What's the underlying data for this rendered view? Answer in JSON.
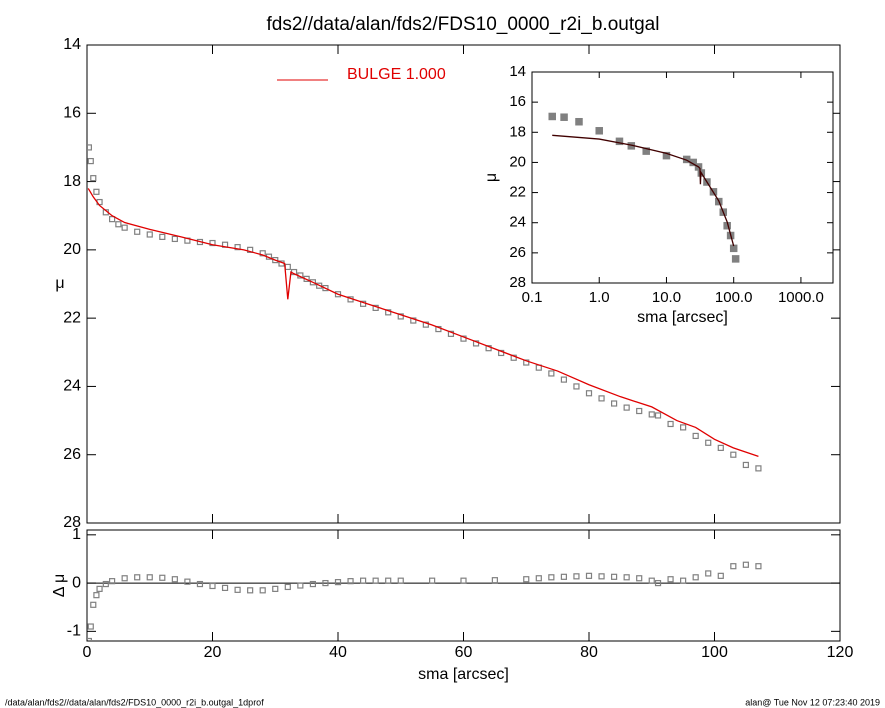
{
  "footer_left": "/data/alan/fds2//data/alan/fds2/FDS10_0000_r2i_b.outgal_1dprof",
  "footer_right": "alan@  Tue Nov 12 07:23:40 2019",
  "chart_data": [
    {
      "type": "line",
      "title": "fds2//data/alan/fds2/FDS10_0000_r2i_b.outgal",
      "y_label": "μ",
      "xlim": [
        0,
        120
      ],
      "xticks": [
        0,
        20,
        40,
        60,
        80,
        100,
        120
      ],
      "ylim": [
        14,
        28
      ],
      "y_inverted": true,
      "yticks": [
        14,
        16,
        18,
        20,
        22,
        24,
        26,
        28
      ],
      "series": [
        {
          "type": "square",
          "color": "#808080",
          "x": [
            0.3,
            0.6,
            1,
            1.5,
            2,
            3,
            4,
            5,
            6,
            8,
            10,
            12,
            14,
            16,
            18,
            20,
            22,
            24,
            26,
            28,
            29,
            30,
            31,
            32,
            33,
            34,
            35,
            36,
            37,
            38,
            40,
            42,
            44,
            46,
            48,
            50,
            52,
            54,
            56,
            58,
            60,
            62,
            64,
            66,
            68,
            70,
            72,
            74,
            76,
            78,
            80,
            82,
            84,
            86,
            88,
            90,
            91,
            93,
            95,
            97,
            99,
            101,
            103,
            105,
            107
          ],
          "values": [
            17.0,
            17.4,
            17.9,
            18.3,
            18.6,
            18.9,
            19.1,
            19.25,
            19.35,
            19.47,
            19.55,
            19.62,
            19.68,
            19.73,
            19.77,
            19.8,
            19.85,
            19.92,
            20.0,
            20.1,
            20.2,
            20.3,
            20.4,
            20.5,
            20.65,
            20.75,
            20.85,
            20.95,
            21.05,
            21.12,
            21.3,
            21.45,
            21.58,
            21.7,
            21.83,
            21.95,
            22.07,
            22.19,
            22.32,
            22.46,
            22.6,
            22.74,
            22.88,
            23.02,
            23.16,
            23.3,
            23.45,
            23.62,
            23.8,
            24.0,
            24.2,
            24.35,
            24.5,
            24.62,
            24.72,
            24.82,
            24.85,
            25.1,
            25.2,
            25.45,
            25.65,
            25.8,
            26.0,
            26.3,
            26.4
          ]
        },
        {
          "type": "line",
          "name": "BULGE  1.000",
          "color": "#e00000",
          "x": [
            0.2,
            1,
            2,
            4,
            6,
            10,
            15,
            20,
            25,
            28,
            30,
            31.5,
            32,
            32.5,
            33,
            36,
            40,
            45,
            50,
            55,
            60,
            65,
            70,
            75,
            80,
            85,
            90,
            94,
            97,
            100,
            103,
            107
          ],
          "values": [
            18.2,
            18.45,
            18.7,
            19.0,
            19.2,
            19.4,
            19.62,
            19.85,
            20.0,
            20.15,
            20.3,
            20.4,
            21.45,
            20.65,
            20.7,
            20.95,
            21.3,
            21.6,
            21.9,
            22.2,
            22.55,
            22.9,
            23.25,
            23.55,
            23.95,
            24.3,
            24.6,
            25.0,
            25.2,
            25.55,
            25.8,
            26.05
          ]
        }
      ]
    },
    {
      "type": "line",
      "x_label": "sma [arcsec]",
      "y_label": "Δ μ",
      "xlim": [
        0,
        120
      ],
      "xticks": [
        0,
        20,
        40,
        60,
        80,
        100,
        120
      ],
      "ylim": [
        -1.2,
        1.1
      ],
      "yticks": [
        -1,
        0,
        1
      ],
      "reference_line": 0,
      "series": [
        {
          "type": "square",
          "color": "#808080",
          "x": [
            0.3,
            0.6,
            1,
            1.5,
            2,
            3,
            4,
            6,
            8,
            10,
            12,
            14,
            16,
            18,
            20,
            22,
            24,
            26,
            28,
            30,
            32,
            34,
            36,
            38,
            40,
            42,
            44,
            46,
            48,
            50,
            55,
            60,
            65,
            70,
            72,
            74,
            76,
            78,
            80,
            82,
            84,
            86,
            88,
            90,
            91,
            93,
            95,
            97,
            99,
            101,
            103,
            105,
            107
          ],
          "values": [
            -1.2,
            -0.9,
            -0.45,
            -0.25,
            -0.12,
            -0.02,
            0.04,
            0.1,
            0.12,
            0.12,
            0.11,
            0.08,
            0.03,
            -0.02,
            -0.06,
            -0.1,
            -0.14,
            -0.15,
            -0.15,
            -0.12,
            -0.08,
            -0.05,
            -0.02,
            0.0,
            0.02,
            0.04,
            0.05,
            0.05,
            0.05,
            0.05,
            0.05,
            0.05,
            0.06,
            0.08,
            0.1,
            0.12,
            0.13,
            0.14,
            0.15,
            0.14,
            0.13,
            0.12,
            0.1,
            0.05,
            0.0,
            0.08,
            0.05,
            0.12,
            0.2,
            0.15,
            0.35,
            0.38,
            0.35
          ]
        }
      ]
    },
    {
      "type": "line",
      "x_label": "sma [arcsec]",
      "y_label": "μ",
      "log_x": true,
      "xlim": [
        0.1,
        3000
      ],
      "xticks": [
        0.1,
        {
          "value": 1,
          "label": "1.0"
        },
        {
          "value": 10,
          "label": "10.0"
        },
        {
          "value": 100,
          "label": "100.0"
        },
        {
          "value": 1000,
          "label": "1000.0"
        }
      ],
      "ylim": [
        14,
        28
      ],
      "y_inverted": true,
      "yticks": [
        14,
        16,
        18,
        20,
        22,
        24,
        26,
        28
      ],
      "series": [
        {
          "type": "square",
          "color": "#808080",
          "x": [
            0.2,
            0.3,
            0.5,
            1,
            2,
            3,
            5,
            10,
            20,
            25,
            30,
            33,
            40,
            50,
            60,
            70,
            80,
            90,
            100,
            107
          ],
          "values": [
            16.95,
            17.0,
            17.3,
            17.9,
            18.6,
            18.9,
            19.25,
            19.55,
            19.8,
            20.0,
            20.3,
            20.7,
            21.3,
            21.95,
            22.6,
            23.3,
            24.2,
            24.85,
            25.7,
            26.4
          ]
        },
        {
          "type": "line",
          "color": "#400000",
          "x": [
            0.2,
            1,
            3,
            10,
            20,
            30,
            31.5,
            32,
            32.5,
            40,
            60,
            80,
            100
          ],
          "values": [
            18.2,
            18.45,
            18.85,
            19.4,
            19.85,
            20.3,
            20.4,
            21.45,
            20.65,
            21.3,
            22.55,
            23.95,
            25.55
          ]
        }
      ]
    }
  ]
}
